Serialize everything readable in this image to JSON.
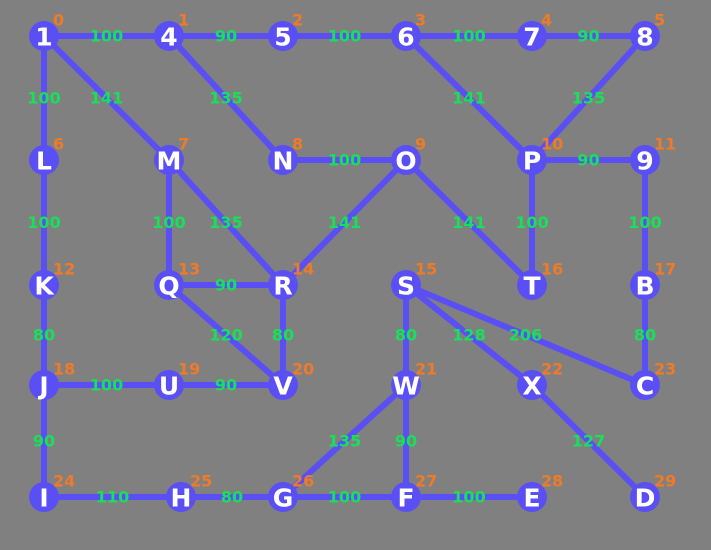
{
  "graph": {
    "colors": {
      "background": "#808080",
      "edge": "#5a4ff5",
      "node": "#5a4ff5",
      "node_label": "#ffffff",
      "index": "#f07a28",
      "weight": "#18e05a"
    },
    "nodes": [
      {
        "id": "n0",
        "label": "1",
        "index": "0"
      },
      {
        "id": "n1",
        "label": "4",
        "index": "1"
      },
      {
        "id": "n2",
        "label": "5",
        "index": "2"
      },
      {
        "id": "n3",
        "label": "6",
        "index": "3"
      },
      {
        "id": "n4",
        "label": "7",
        "index": "4"
      },
      {
        "id": "n5",
        "label": "8",
        "index": "5"
      },
      {
        "id": "n6",
        "label": "L",
        "index": "6"
      },
      {
        "id": "n7",
        "label": "M",
        "index": "7"
      },
      {
        "id": "n8",
        "label": "N",
        "index": "8"
      },
      {
        "id": "n9",
        "label": "O",
        "index": "9"
      },
      {
        "id": "n10",
        "label": "P",
        "index": "10"
      },
      {
        "id": "n11",
        "label": "9",
        "index": "11"
      },
      {
        "id": "n12",
        "label": "K",
        "index": "12"
      },
      {
        "id": "n13",
        "label": "Q",
        "index": "13"
      },
      {
        "id": "n14",
        "label": "R",
        "index": "14"
      },
      {
        "id": "n15",
        "label": "S",
        "index": "15"
      },
      {
        "id": "n16",
        "label": "T",
        "index": "16"
      },
      {
        "id": "n17",
        "label": "B",
        "index": "17"
      },
      {
        "id": "n18",
        "label": "J",
        "index": "18"
      },
      {
        "id": "n19",
        "label": "U",
        "index": "19"
      },
      {
        "id": "n20",
        "label": "V",
        "index": "20"
      },
      {
        "id": "n21",
        "label": "W",
        "index": "21"
      },
      {
        "id": "n22",
        "label": "X",
        "index": "22"
      },
      {
        "id": "n23",
        "label": "C",
        "index": "23"
      },
      {
        "id": "n24",
        "label": "I",
        "index": "24"
      },
      {
        "id": "n25",
        "label": "H",
        "index": "25"
      },
      {
        "id": "n26",
        "label": "G",
        "index": "26"
      },
      {
        "id": "n27",
        "label": "F",
        "index": "27"
      },
      {
        "id": "n28",
        "label": "E",
        "index": "28"
      },
      {
        "id": "n29",
        "label": "D",
        "index": "29"
      }
    ],
    "edges": [
      {
        "from": "0",
        "to": "1",
        "weight": "100"
      },
      {
        "from": "1",
        "to": "2",
        "weight": "90"
      },
      {
        "from": "2",
        "to": "3",
        "weight": "100"
      },
      {
        "from": "3",
        "to": "4",
        "weight": "100"
      },
      {
        "from": "4",
        "to": "5",
        "weight": "90"
      },
      {
        "from": "0",
        "to": "6",
        "weight": "100"
      },
      {
        "from": "0",
        "to": "7",
        "weight": "141"
      },
      {
        "from": "1",
        "to": "8",
        "weight": "135"
      },
      {
        "from": "3",
        "to": "10",
        "weight": "141"
      },
      {
        "from": "5",
        "to": "10",
        "weight": "135"
      },
      {
        "from": "8",
        "to": "9",
        "weight": "100"
      },
      {
        "from": "10",
        "to": "11",
        "weight": "90"
      },
      {
        "from": "6",
        "to": "12",
        "weight": "100"
      },
      {
        "from": "7",
        "to": "13",
        "weight": "100"
      },
      {
        "from": "7",
        "to": "14",
        "weight": "135"
      },
      {
        "from": "9",
        "to": "14",
        "weight": "141"
      },
      {
        "from": "9",
        "to": "16",
        "weight": "141"
      },
      {
        "from": "10",
        "to": "16",
        "weight": "100"
      },
      {
        "from": "11",
        "to": "17",
        "weight": "100"
      },
      {
        "from": "13",
        "to": "14",
        "weight": "90"
      },
      {
        "from": "12",
        "to": "18",
        "weight": "80"
      },
      {
        "from": "13",
        "to": "20",
        "weight": "120"
      },
      {
        "from": "14",
        "to": "20",
        "weight": "80"
      },
      {
        "from": "15",
        "to": "21",
        "weight": "80"
      },
      {
        "from": "15",
        "to": "22",
        "weight": "128"
      },
      {
        "from": "15",
        "to": "23",
        "weight": "206"
      },
      {
        "from": "17",
        "to": "23",
        "weight": "80"
      },
      {
        "from": "18",
        "to": "19",
        "weight": "100"
      },
      {
        "from": "19",
        "to": "20",
        "weight": "90"
      },
      {
        "from": "18",
        "to": "24",
        "weight": "90"
      },
      {
        "from": "21",
        "to": "26",
        "weight": "135"
      },
      {
        "from": "21",
        "to": "27",
        "weight": "90"
      },
      {
        "from": "22",
        "to": "29",
        "weight": "127"
      },
      {
        "from": "24",
        "to": "25",
        "weight": "110"
      },
      {
        "from": "25",
        "to": "26",
        "weight": "80"
      },
      {
        "from": "26",
        "to": "27",
        "weight": "100"
      },
      {
        "from": "27",
        "to": "28",
        "weight": "100"
      }
    ]
  }
}
